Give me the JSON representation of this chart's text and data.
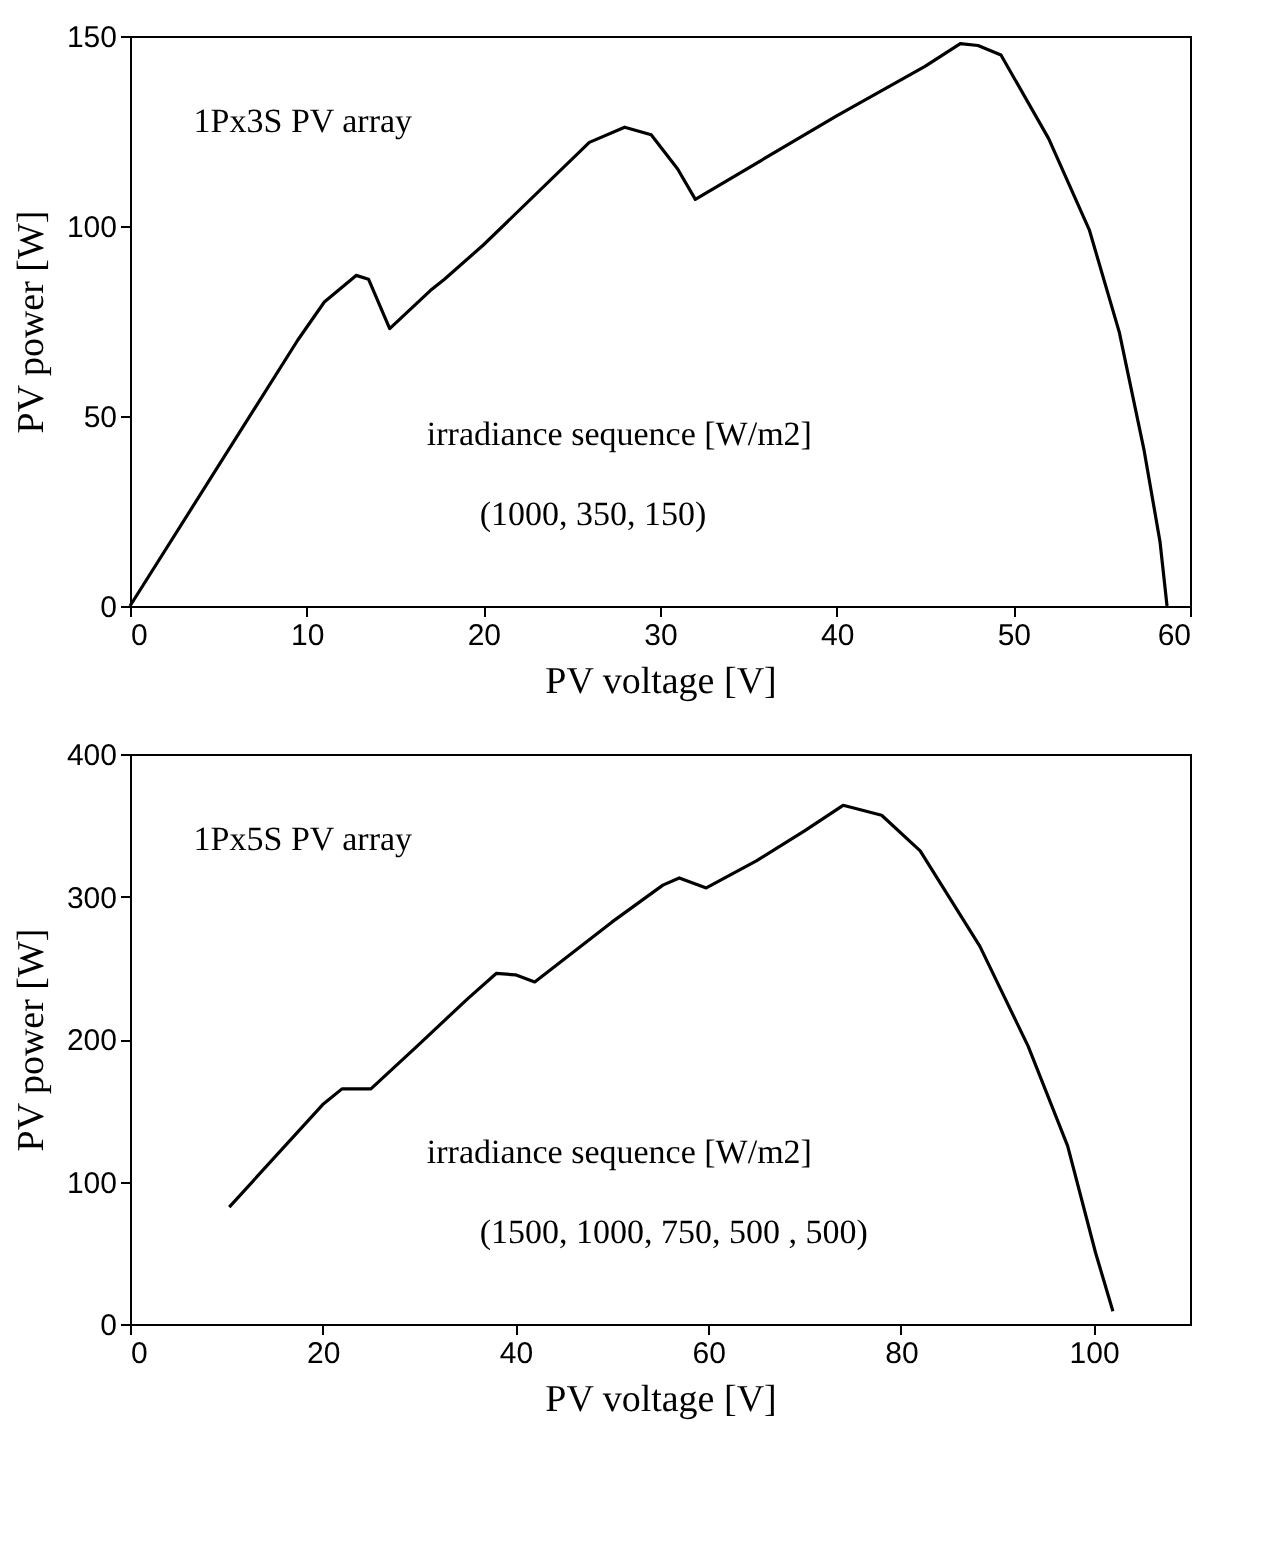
{
  "chart_data": [
    {
      "type": "line",
      "xlabel": "PV voltage [V]",
      "ylabel": "PV power [W]",
      "annotations": [
        "1Px3S PV array",
        "irradiance sequence  [W/m2]",
        "(1000, 350, 150)"
      ],
      "xlim": [
        0,
        60
      ],
      "xticks": [
        0,
        10,
        20,
        30,
        40,
        50,
        60
      ],
      "ylim": [
        0,
        150
      ],
      "yticks": [
        0,
        50,
        100,
        150
      ],
      "grid": false,
      "marker": "none",
      "line_style": "solid",
      "series": [
        {
          "color": "#000000",
          "x": [
            0,
            9.5,
            11,
            12.8,
            13.5,
            14.7,
            17,
            17.8,
            20,
            26,
            28,
            29.5,
            31,
            32,
            40,
            45,
            47,
            48,
            49.3,
            52,
            54.3,
            56,
            57.4,
            58.3,
            58.7
          ],
          "values": [
            0,
            70,
            80,
            87,
            86,
            73,
            83,
            86,
            95,
            122,
            126,
            124,
            115,
            107,
            129,
            142,
            148,
            147.5,
            145,
            123,
            99,
            72,
            41,
            17,
            0
          ]
        }
      ]
    },
    {
      "type": "line",
      "xlabel": "PV voltage [V]",
      "ylabel": "PV power [W]",
      "annotations": [
        "1Px5S PV array",
        "irradiance sequence  [W/m2]",
        "(1500, 1000, 750, 500 , 500)"
      ],
      "xlim": [
        0,
        110
      ],
      "xticks": [
        0,
        20,
        40,
        60,
        80,
        100
      ],
      "ylim": [
        0,
        400
      ],
      "yticks": [
        0,
        100,
        200,
        300,
        400
      ],
      "grid": false,
      "marker": "none",
      "line_style": "solid",
      "series": [
        {
          "color": "#000000",
          "x": [
            10.3,
            20,
            22,
            25,
            29.8,
            35,
            38,
            40,
            42,
            50,
            55.3,
            57,
            59.8,
            65,
            70,
            74,
            78,
            82,
            88.2,
            93.2,
            97.3,
            100.2,
            102
          ],
          "values": [
            82,
            154,
            165,
            165,
            195,
            228,
            246,
            245,
            240,
            282,
            308,
            313,
            306,
            325,
            346,
            364,
            357,
            332,
            265,
            195,
            125,
            50,
            9
          ]
        }
      ]
    }
  ]
}
